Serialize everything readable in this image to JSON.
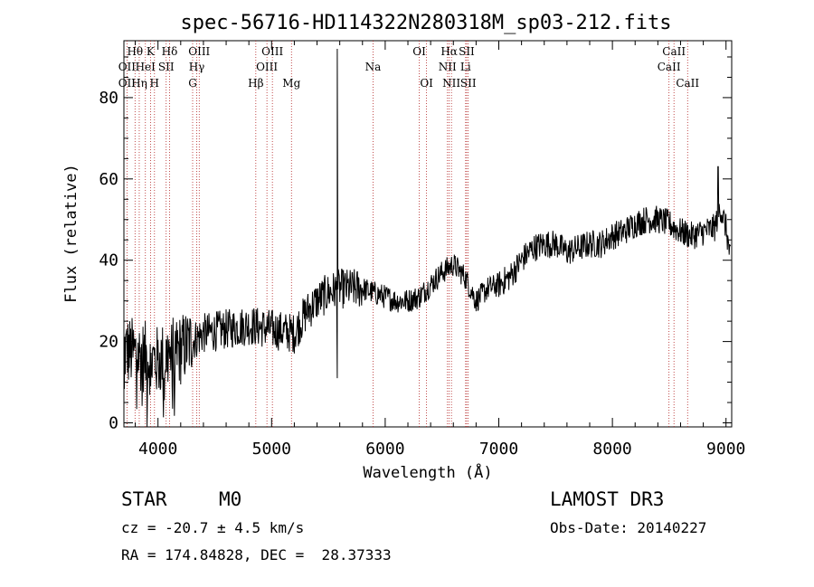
{
  "chart_data": {
    "type": "line",
    "title": "spec-56716-HD114322N280318M_sp03-212.fits",
    "xlabel": "Wavelength (Å)",
    "ylabel": "Flux (relative)",
    "xlim": [
      3700,
      9050
    ],
    "ylim": [
      -1,
      94
    ],
    "xticks": [
      4000,
      5000,
      6000,
      7000,
      8000,
      9000
    ],
    "yticks": [
      0,
      20,
      40,
      60,
      80
    ],
    "grid": false,
    "continuum_anchors": {
      "x": [
        3700,
        3800,
        3900,
        4000,
        4100,
        4200,
        4300,
        4400,
        4600,
        4800,
        5000,
        5200,
        5300,
        5400,
        5500,
        5600,
        5700,
        5800,
        5900,
        6000,
        6100,
        6200,
        6300,
        6400,
        6500,
        6600,
        6700,
        6750,
        6800,
        6900,
        7000,
        7100,
        7200,
        7300,
        7400,
        7500,
        7600,
        7700,
        7800,
        7900,
        8000,
        8100,
        8200,
        8300,
        8400,
        8500,
        8600,
        8700,
        8800,
        8900,
        8950,
        9000,
        9050
      ],
      "y": [
        18,
        17,
        16,
        15,
        17,
        18,
        20,
        22,
        23,
        24,
        23,
        22,
        27,
        30,
        32,
        33,
        33,
        33,
        32,
        31,
        30,
        30,
        31,
        34,
        37,
        39,
        36,
        33,
        30,
        33,
        34,
        36,
        40,
        43,
        44,
        44,
        42,
        43,
        44,
        44,
        46,
        47,
        49,
        50,
        50,
        49,
        47,
        46,
        47,
        48,
        53,
        48,
        38
      ]
    },
    "special_features": [
      {
        "x": 5578,
        "y_range": [
          11,
          92
        ],
        "note": "strong sky-line spike"
      },
      {
        "x": 8930,
        "y": 63,
        "note": "peak"
      }
    ],
    "lines": [
      {
        "label": "Hθ",
        "wl": 3798,
        "row": 0
      },
      {
        "label": "OII",
        "wl": 3727,
        "row": 1
      },
      {
        "label": "OII",
        "wl": 3727,
        "row": 2
      },
      {
        "label": "HeI",
        "wl": 3889,
        "row": 1
      },
      {
        "label": "Hη",
        "wl": 3835,
        "row": 2
      },
      {
        "label": "K",
        "wl": 3934,
        "row": 0
      },
      {
        "label": "SII",
        "wl": 4072,
        "row": 1
      },
      {
        "label": "H",
        "wl": 3969,
        "row": 2
      },
      {
        "label": "Hδ",
        "wl": 4102,
        "row": 0
      },
      {
        "label": "OIII",
        "wl": 4363,
        "row": 0
      },
      {
        "label": "Hγ",
        "wl": 4341,
        "row": 1
      },
      {
        "label": "G",
        "wl": 4305,
        "row": 2
      },
      {
        "label": "Hβ",
        "wl": 4861,
        "row": 2
      },
      {
        "label": "OIII",
        "wl": 4959,
        "row": 1
      },
      {
        "label": "OIII",
        "wl": 5007,
        "row": 0
      },
      {
        "label": "Mg",
        "wl": 5175,
        "row": 2
      },
      {
        "label": "Na",
        "wl": 5893,
        "row": 1
      },
      {
        "label": "OI",
        "wl": 6300,
        "row": 0
      },
      {
        "label": "OI",
        "wl": 6364,
        "row": 2
      },
      {
        "label": "Hα",
        "wl": 6563,
        "row": 0
      },
      {
        "label": "NII",
        "wl": 6548,
        "row": 1
      },
      {
        "label": "NII",
        "wl": 6583,
        "row": 2
      },
      {
        "label": "SII",
        "wl": 6717,
        "row": 0
      },
      {
        "label": "Li",
        "wl": 6708,
        "row": 1
      },
      {
        "label": "SII",
        "wl": 6731,
        "row": 2
      },
      {
        "label": "CaII",
        "wl": 8542,
        "row": 0
      },
      {
        "label": "CaII",
        "wl": 8498,
        "row": 1
      },
      {
        "label": "CaII",
        "wl": 8662,
        "row": 2
      }
    ]
  },
  "info": {
    "class": "STAR",
    "subclass": "M0",
    "survey": "LAMOST DR3",
    "cz": "cz = -20.7 ± 4.5 km/s",
    "obs_date": "Obs-Date: 20140227",
    "coords": "RA = 174.84828, DEC =  28.37333"
  },
  "colors": {
    "spectrum": "#000000",
    "line_markers": "#b22222",
    "axes": "#000000"
  }
}
